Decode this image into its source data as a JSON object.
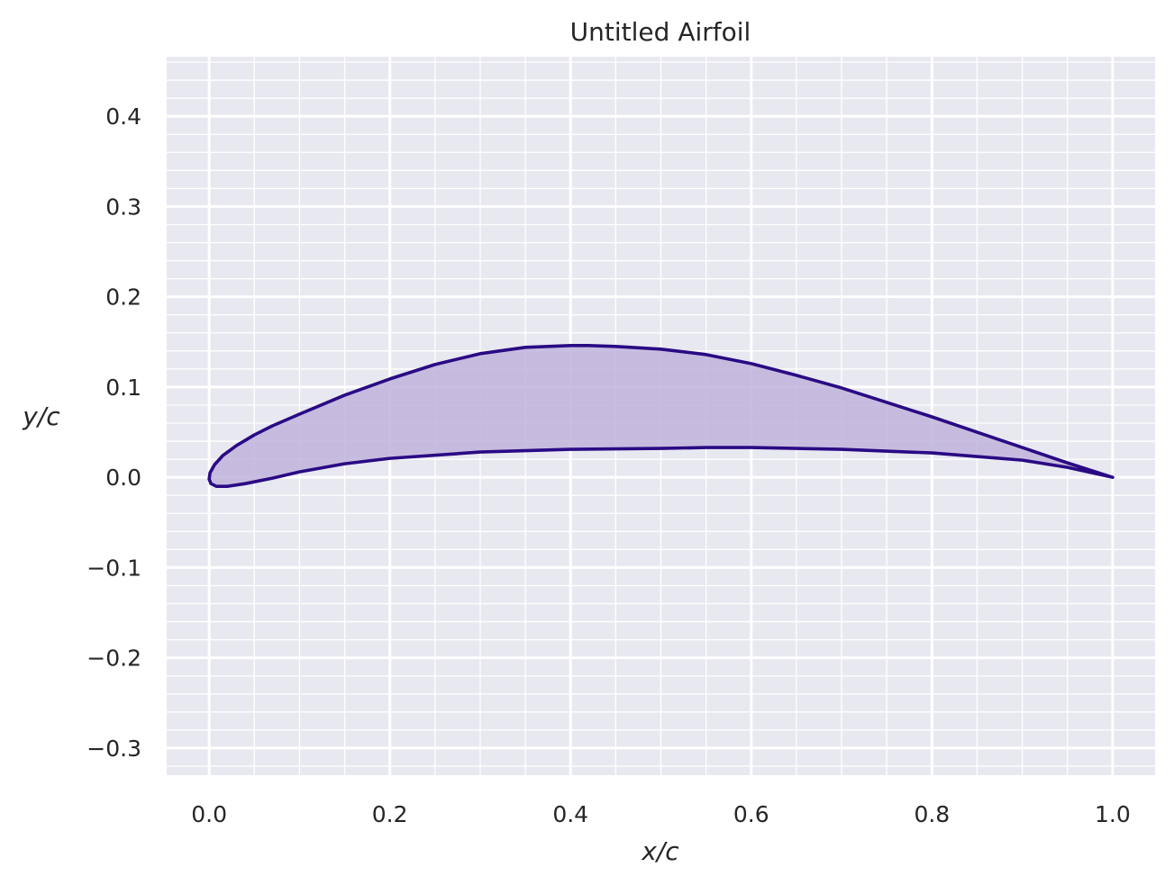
{
  "chart_data": {
    "type": "line",
    "title": "Untitled Airfoil",
    "xlabel": "x/c",
    "ylabel": "y/c",
    "xlim": [
      -0.047,
      1.047
    ],
    "ylim": [
      -0.33,
      0.466
    ],
    "xticks": [
      0.0,
      0.2,
      0.4,
      0.6,
      0.8,
      1.0
    ],
    "xtick_labels": [
      "0.0",
      "0.2",
      "0.4",
      "0.6",
      "0.8",
      "1.0"
    ],
    "yticks": [
      0.4,
      0.3,
      0.2,
      0.1,
      0.0,
      -0.1,
      -0.2,
      -0.3
    ],
    "ytick_labels": [
      "0.4",
      "0.3",
      "0.2",
      "0.1",
      "0.0",
      "−0.1",
      "−0.2",
      "−0.3"
    ],
    "x_minor_step": 0.05,
    "y_minor_step": 0.02,
    "grid": true,
    "series": [
      {
        "fill": true,
        "x": [
          1.0,
          0.95,
          0.9,
          0.85,
          0.8,
          0.75,
          0.7,
          0.65,
          0.6,
          0.55,
          0.5,
          0.45,
          0.42,
          0.4,
          0.35,
          0.3,
          0.25,
          0.2,
          0.15,
          0.1,
          0.07,
          0.05,
          0.03,
          0.015,
          0.006,
          0.001,
          0.0,
          0.002,
          0.008,
          0.02,
          0.04,
          0.07,
          0.1,
          0.15,
          0.2,
          0.3,
          0.4,
          0.5,
          0.55,
          0.6,
          0.7,
          0.8,
          0.9,
          0.95,
          1.0
        ],
        "y": [
          0.0,
          0.016,
          0.033,
          0.05,
          0.067,
          0.083,
          0.099,
          0.113,
          0.126,
          0.136,
          0.142,
          0.145,
          0.146,
          0.146,
          0.144,
          0.137,
          0.125,
          0.109,
          0.091,
          0.07,
          0.057,
          0.047,
          0.035,
          0.024,
          0.014,
          0.005,
          -0.002,
          -0.007,
          -0.01,
          -0.01,
          -0.007,
          -0.001,
          0.006,
          0.015,
          0.021,
          0.028,
          0.031,
          0.032,
          0.033,
          0.033,
          0.031,
          0.027,
          0.019,
          0.011,
          0.0
        ]
      }
    ]
  },
  "colors": {
    "line": "#2a0a84",
    "fill": "#bfb3dc",
    "plot_bg": "#e8e8f1",
    "grid": "#ffffff",
    "text": "#262626"
  }
}
